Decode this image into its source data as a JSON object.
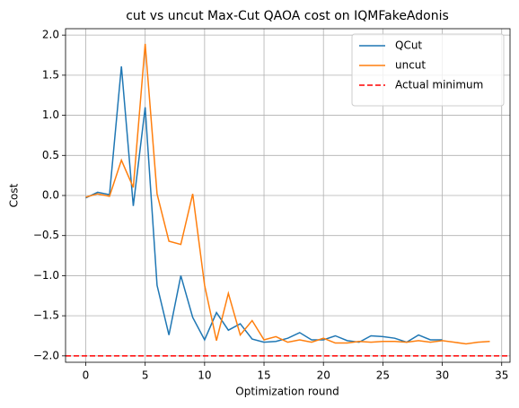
{
  "chart_data": {
    "type": "line",
    "title": "cut vs uncut Max-Cut QAOA cost on IQMFakeAdonis",
    "xlabel": "Optimization round",
    "ylabel": "Cost",
    "x": [
      0,
      1,
      2,
      3,
      4,
      5,
      6,
      7,
      8,
      9,
      10,
      11,
      12,
      13,
      14,
      15,
      16,
      17,
      18,
      19,
      20,
      21,
      22,
      23,
      24,
      25,
      26,
      27,
      28,
      29,
      30,
      31,
      32,
      33,
      34
    ],
    "series": [
      {
        "name": "QCut",
        "color": "#1f77b4",
        "values": [
          -0.03,
          0.04,
          0.01,
          1.61,
          -0.13,
          1.1,
          -1.12,
          -1.74,
          -1.0,
          -1.52,
          -1.8,
          -1.46,
          -1.68,
          -1.6,
          -1.79,
          -1.83,
          -1.82,
          -1.78,
          -1.71,
          -1.8,
          -1.8,
          -1.75,
          -1.81,
          -1.83,
          -1.75,
          -1.76,
          -1.78,
          -1.83,
          -1.74,
          -1.8,
          -1.8,
          null,
          null,
          null,
          null
        ]
      },
      {
        "name": "uncut",
        "color": "#ff7f0e",
        "values": [
          -0.02,
          0.02,
          -0.01,
          0.44,
          0.1,
          1.89,
          0.02,
          -0.57,
          -0.61,
          0.02,
          -1.12,
          -1.81,
          -1.22,
          -1.74,
          -1.56,
          -1.8,
          -1.76,
          -1.83,
          -1.8,
          -1.83,
          -1.78,
          -1.84,
          -1.84,
          -1.82,
          -1.83,
          -1.82,
          -1.82,
          -1.83,
          -1.81,
          -1.83,
          -1.81,
          -1.83,
          -1.85,
          -1.83,
          -1.82
        ]
      }
    ],
    "hlines": [
      {
        "name": "Actual minimum",
        "y": -2.0,
        "color": "#ff0000",
        "dashed": true
      }
    ],
    "xlim": [
      -1.7,
      35.7
    ],
    "ylim": [
      -2.08,
      2.08
    ],
    "xticks": [
      0,
      5,
      10,
      15,
      20,
      25,
      30,
      35
    ],
    "yticks": [
      {
        "value": 2.0,
        "label": "2.0"
      },
      {
        "value": 1.5,
        "label": "1.5"
      },
      {
        "value": 1.0,
        "label": "1.0"
      },
      {
        "value": 0.5,
        "label": "0.5"
      },
      {
        "value": 0.0,
        "label": "0.0"
      },
      {
        "value": -0.5,
        "label": "−0.5"
      },
      {
        "value": -1.0,
        "label": "−1.0"
      },
      {
        "value": -1.5,
        "label": "−1.5"
      },
      {
        "value": -2.0,
        "label": "−2.0"
      }
    ],
    "grid": true,
    "legend": "upper right"
  }
}
